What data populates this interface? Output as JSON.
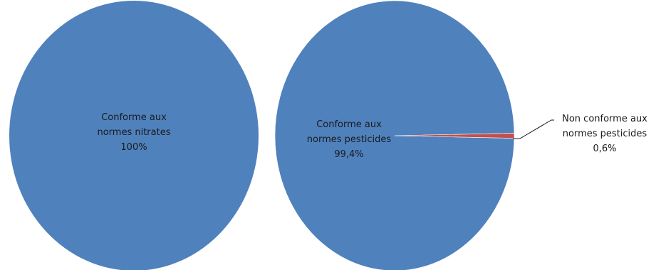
{
  "chart_data": [
    {
      "type": "pie",
      "slices": [
        {
          "label_lines": [
            "Conforme aux",
            "normes nitrates"
          ],
          "percent_label": "100%",
          "value": 100,
          "color": "#4f81bd"
        }
      ]
    },
    {
      "type": "pie",
      "slices": [
        {
          "label_lines": [
            "Conforme aux",
            "normes pesticides"
          ],
          "percent_label": "99,4%",
          "value": 99.4,
          "color": "#4f81bd"
        },
        {
          "label_lines": [
            "Non conforme aux",
            "normes pesticides"
          ],
          "percent_label": "0,6%",
          "value": 0.6,
          "color": "#c0504d"
        }
      ]
    }
  ]
}
